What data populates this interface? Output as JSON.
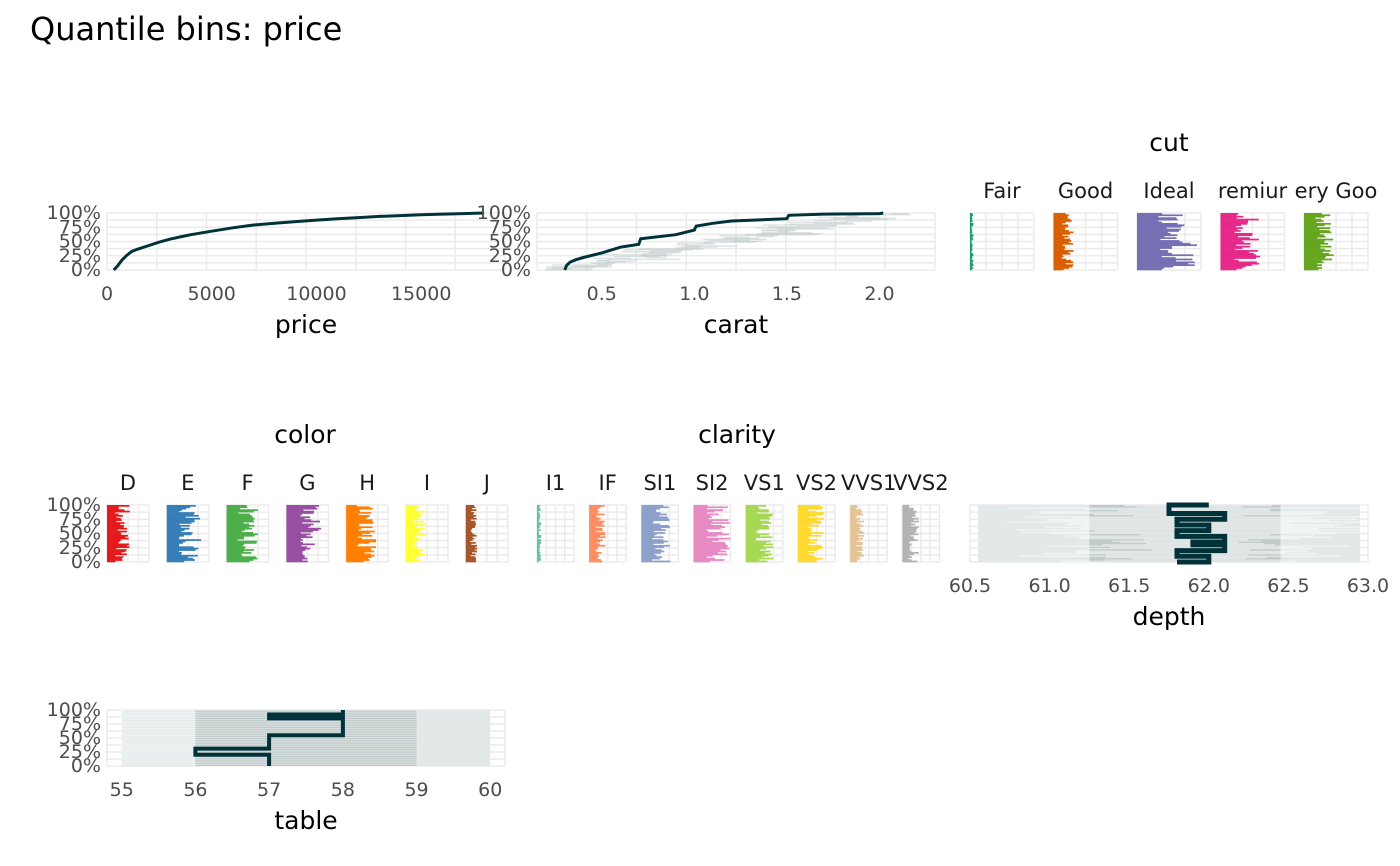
{
  "title": "Quantile bins: price",
  "colors": {
    "line": "#01323a",
    "band": "#b6c2c2",
    "band_light": "#e3e9e9",
    "grid": "#ebebeb"
  },
  "chart_data": [
    {
      "id": "price",
      "type": "line",
      "xlabel": "price",
      "ylabel": "",
      "xlim": [
        0,
        19000
      ],
      "xticks": [
        0,
        5000,
        10000,
        15000
      ],
      "yticks": [
        "0%",
        "25%",
        "50%",
        "75%",
        "100%"
      ],
      "ylim": [
        0,
        1
      ],
      "series": [
        {
          "x": [
            326,
            500,
            700,
            950,
            1200,
            1500,
            2000,
            2500,
            3000,
            3500,
            4000,
            5000,
            6000,
            7000,
            8000,
            9000,
            10000,
            11000,
            12000,
            13000,
            14000,
            15000,
            16000,
            17000,
            18000
          ],
          "y": [
            0,
            0.07,
            0.17,
            0.26,
            0.33,
            0.37,
            0.43,
            0.49,
            0.54,
            0.58,
            0.62,
            0.68,
            0.74,
            0.79,
            0.82,
            0.85,
            0.875,
            0.9,
            0.92,
            0.94,
            0.955,
            0.97,
            0.98,
            0.99,
            1.0
          ]
        }
      ]
    },
    {
      "id": "carat",
      "type": "line",
      "xlabel": "carat",
      "ylabel": "",
      "xlim": [
        0.15,
        2.3
      ],
      "xticks": [
        0.5,
        1.0,
        1.5,
        2.0
      ],
      "xticklabels": [
        "0.5",
        "1.0",
        "1.5",
        "2.0"
      ],
      "yticks": [
        "0%",
        "25%",
        "50%",
        "75%",
        "100%"
      ],
      "ylim": [
        0,
        1
      ],
      "series": [
        {
          "x": [
            0.3,
            0.31,
            0.33,
            0.36,
            0.4,
            0.5,
            0.6,
            0.7,
            0.71,
            0.9,
            1.0,
            1.01,
            1.1,
            1.2,
            1.5,
            1.51,
            1.7,
            2.0,
            2.02
          ],
          "y": [
            0,
            0.08,
            0.14,
            0.18,
            0.22,
            0.3,
            0.4,
            0.45,
            0.55,
            0.62,
            0.7,
            0.77,
            0.82,
            0.86,
            0.9,
            0.96,
            0.98,
            0.99,
            1.0
          ]
        }
      ]
    },
    {
      "id": "cut",
      "type": "histogram",
      "title": "cut",
      "categories": [
        "Fair",
        "Good",
        "Ideal",
        "Premium",
        "Very Good"
      ],
      "category_labels": [
        "Fair",
        "Good",
        "Ideal",
        "remiur",
        "ery Goo"
      ],
      "colors": [
        "#1b9e77",
        "#d95f02",
        "#7570b3",
        "#e7298a",
        "#66a61e"
      ],
      "max_share": [
        0.06,
        0.32,
        0.95,
        0.62,
        0.5
      ]
    },
    {
      "id": "color",
      "type": "histogram",
      "title": "color",
      "categories": [
        "D",
        "E",
        "F",
        "G",
        "H",
        "I",
        "J"
      ],
      "colors": [
        "#e41a1c",
        "#377eb8",
        "#4daf4a",
        "#984ea3",
        "#ff7f00",
        "#ffff33",
        "#a65628"
      ],
      "max_share": [
        0.55,
        0.82,
        0.75,
        0.85,
        0.72,
        0.48,
        0.28
      ],
      "yticks": [
        "0%",
        "25%",
        "50%",
        "75%",
        "100%"
      ]
    },
    {
      "id": "clarity",
      "type": "histogram",
      "title": "clarity",
      "categories": [
        "I1",
        "IF",
        "SI1",
        "SI2",
        "VS1",
        "VS2",
        "VVS1",
        "VVS2"
      ],
      "category_labels": [
        "I1",
        "IF",
        "SI1",
        "SI2",
        "VS1",
        "VS2",
        "VVS1",
        "VVS2"
      ],
      "colors": [
        "#66c2a5",
        "#fc8d62",
        "#8da0cb",
        "#e78ac3",
        "#a6d854",
        "#ffd92f",
        "#e5c494",
        "#b3b3b3"
      ],
      "max_share": [
        0.12,
        0.45,
        0.8,
        1.0,
        0.75,
        0.72,
        0.4,
        0.45
      ]
    },
    {
      "id": "depth",
      "type": "line",
      "xlabel": "depth",
      "ylabel": "",
      "xlim": [
        60.5,
        63.0
      ],
      "xticks": [
        60.5,
        61.0,
        61.5,
        62.0,
        62.5,
        63.0
      ],
      "xticklabels": [
        "60.5",
        "61.0",
        "61.5",
        "62.0",
        "62.5",
        "63.0"
      ],
      "series": [
        {
          "x": [
            61.8,
            62.0,
            62.0,
            61.8,
            61.8,
            62.1,
            62.1,
            61.9,
            61.9,
            62.1,
            62.1,
            61.8,
            61.8,
            62.0,
            62.0,
            61.8,
            61.8,
            62.1,
            62.1,
            61.75,
            61.75,
            62.0
          ],
          "y": [
            0.0,
            0.0,
            0.1,
            0.1,
            0.2,
            0.2,
            0.3,
            0.3,
            0.35,
            0.35,
            0.45,
            0.45,
            0.55,
            0.55,
            0.65,
            0.65,
            0.75,
            0.75,
            0.85,
            0.85,
            1.0,
            1.0
          ]
        }
      ]
    },
    {
      "id": "table",
      "type": "line",
      "xlabel": "table",
      "ylabel": "",
      "xlim": [
        54.8,
        60.2
      ],
      "xticks": [
        55,
        56,
        57,
        58,
        59,
        60
      ],
      "yticks": [
        "0%",
        "25%",
        "50%",
        "75%",
        "100%"
      ],
      "ylim": [
        0,
        1
      ],
      "series": [
        {
          "x": [
            57,
            57,
            56,
            56,
            57,
            57,
            57,
            58,
            58,
            57,
            57,
            58,
            58,
            58
          ],
          "y": [
            0.0,
            0.2,
            0.2,
            0.31,
            0.31,
            0.55,
            0.55,
            0.55,
            0.85,
            0.85,
            0.92,
            0.92,
            0.92,
            1.0
          ]
        }
      ]
    }
  ]
}
